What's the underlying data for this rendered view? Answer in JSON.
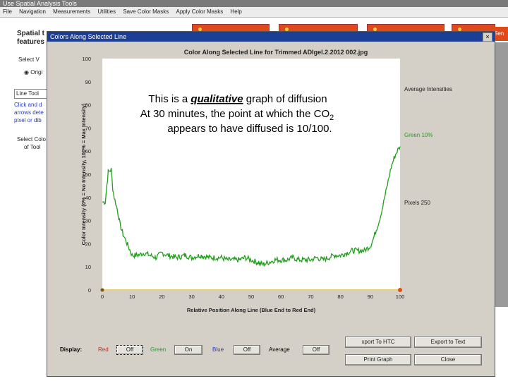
{
  "app": {
    "title": "Use Spatial Analysis Tools",
    "menu": [
      "File",
      "Navigation",
      "Measurements",
      "Utilities",
      "Save Color Masks",
      "Apply Color Masks",
      "Help"
    ]
  },
  "background": {
    "heading": "Spatial t",
    "heading2": "features",
    "select_label": "Select V",
    "radio_label": "Origi",
    "tool_field": "Line Tool",
    "hint_lines": [
      "Click and d",
      "arrows dete",
      "pixel or dib"
    ],
    "select_col": "Select Colo",
    "select_col2": "of Tool",
    "sen_label": "Sen"
  },
  "dialog": {
    "title": "Colors Along Selected Line",
    "close_icon": "×"
  },
  "chart_data": {
    "type": "line",
    "title": "Color Along Selected Line for Trimmed ADIgel.2.2012 002.jpg",
    "xlabel": "Relative Position Along Line (Blue End to Red End)",
    "ylabel": "Color Intensity (0% = No Intensity, 100% = Max Intensity)",
    "xlim": [
      0,
      100
    ],
    "ylim": [
      0,
      100
    ],
    "x_ticks": [
      "0",
      "10",
      "20",
      "30",
      "40",
      "50",
      "60",
      "70",
      "80",
      "90",
      "100"
    ],
    "y_ticks": [
      "0",
      "10",
      "20",
      "30",
      "40",
      "50",
      "60",
      "70",
      "80",
      "90",
      "100"
    ],
    "series": [
      {
        "name": "Green",
        "color": "#22a01c",
        "x": [
          0,
          1,
          1.5,
          2,
          3,
          3.5,
          4,
          5,
          6,
          7,
          8,
          9,
          10,
          12,
          14,
          16,
          18,
          20,
          22,
          25,
          28,
          30,
          33,
          36,
          38,
          40,
          42,
          44,
          46,
          48,
          50,
          52,
          54,
          56,
          58,
          60,
          62,
          64,
          66,
          68,
          70,
          72,
          74,
          76,
          78,
          80,
          82,
          84,
          86,
          88,
          89,
          90,
          91,
          92,
          93,
          94,
          95,
          96,
          97,
          98,
          99,
          100
        ],
        "y": [
          38,
          38,
          45,
          51,
          52,
          44,
          40,
          35,
          28,
          24,
          21,
          18,
          15,
          15,
          16,
          15,
          14,
          16,
          15,
          14,
          15,
          14,
          15,
          14,
          14,
          14,
          13,
          13,
          13,
          14,
          13,
          12,
          11,
          12,
          13,
          13,
          13,
          14,
          13,
          13,
          13,
          14,
          13,
          14,
          15,
          15,
          16,
          17,
          17,
          17,
          18,
          19,
          22,
          26,
          30,
          35,
          41,
          47,
          53,
          57,
          60,
          62
        ]
      }
    ],
    "annotation": {
      "line1_prefix": "This is a ",
      "line1_emph": "qualitative",
      "line1_suffix": " graph of diffusion",
      "line2_prefix": "At 30 minutes, the point at which the CO",
      "line2_sub": "2",
      "line3": "appears to have diffused is 10/100."
    },
    "legend": {
      "header": "Average Intensities",
      "green": "Green 10%",
      "pixels": "Pixels 250"
    }
  },
  "controls": {
    "display_label": "Display:",
    "red_label": "Red",
    "red_btn": "Off",
    "green_label": "Green",
    "green_btn": "On",
    "blue_label": "Blue",
    "blue_btn": "Off",
    "avg_label": "Average",
    "avg_btn": "Off",
    "export_btn1": "xport To HTC",
    "export_btn2": "Export to Text",
    "print_btn": "Print Graph",
    "close_btn": "Close"
  },
  "colors": {
    "red_label": "#cc2a1a",
    "green_label": "#22a01c",
    "blue_label": "#2438c4",
    "dialog_title_bg": "#1c3f95"
  }
}
